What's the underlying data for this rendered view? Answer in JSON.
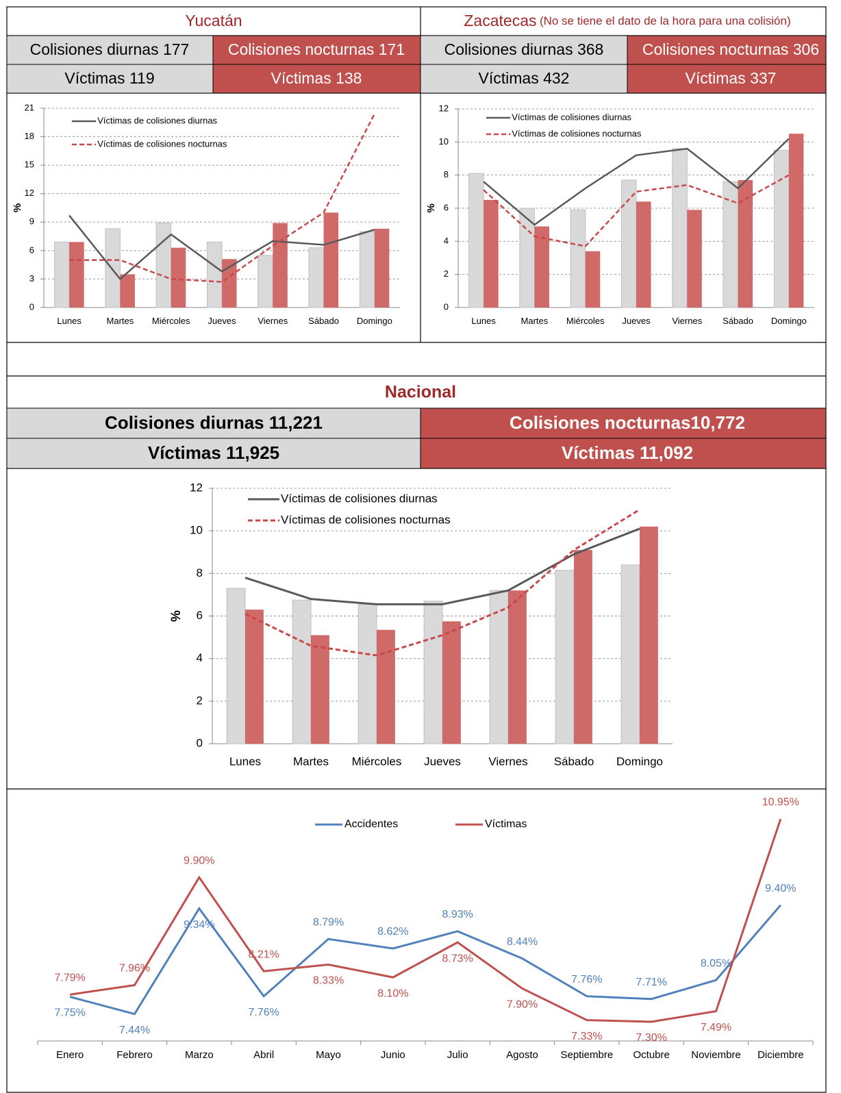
{
  "yucatan": {
    "title": "Yucatán",
    "rows": [
      [
        "Colisiones diurnas 177",
        "Colisiones nocturnas 171"
      ],
      [
        "Víctimas 119",
        "Víctimas 138"
      ]
    ]
  },
  "zacatecas": {
    "title": "Zacatecas",
    "note": "(No se tiene el dato de la hora para una colisión)",
    "rows": [
      [
        "Colisiones diurnas 368",
        "Colisiones nocturnas 306"
      ],
      [
        "Víctimas 432",
        "Víctimas 337"
      ]
    ]
  },
  "nacional": {
    "title": "Nacional",
    "rows": [
      [
        "Colisiones diurnas 11,221",
        "Colisiones nocturnas10,772"
      ],
      [
        "Víctimas 11,925",
        "Víctimas 11,092"
      ]
    ]
  },
  "chart_data": [
    {
      "type": "combo",
      "categories": [
        "Lunes",
        "Martes",
        "Miércoles",
        "Jueves",
        "Viernes",
        "Sábado",
        "Domingo"
      ],
      "ylabel": "%",
      "ylim": [
        0,
        21
      ],
      "yticks": [
        0,
        3,
        6,
        9,
        12,
        15,
        18,
        21
      ],
      "grid": true,
      "bars": [
        {
          "color": "#d9d9d9",
          "values": [
            6.9,
            8.3,
            8.9,
            6.9,
            5.5,
            6.3,
            8.0
          ]
        },
        {
          "color": "#d06a68",
          "values": [
            6.9,
            3.5,
            6.3,
            5.1,
            8.9,
            10.0,
            8.3
          ]
        }
      ],
      "series": [
        {
          "name": "Víctimas de colisiones diurnas",
          "color": "#595959",
          "dash": false,
          "values": [
            9.7,
            3.0,
            7.7,
            3.8,
            7.0,
            6.6,
            8.2
          ]
        },
        {
          "name": "Víctimas de colisiones nocturnas",
          "color": "#c9484a",
          "dash": true,
          "values": [
            5.0,
            5.0,
            3.0,
            2.7,
            6.5,
            10.0,
            20.4
          ]
        }
      ]
    },
    {
      "type": "combo",
      "categories": [
        "Lunes",
        "Martes",
        "Miércoles",
        "Jueves",
        "Viernes",
        "Sábado",
        "Domingo"
      ],
      "ylabel": "%",
      "ylim": [
        0,
        12
      ],
      "yticks": [
        0,
        2,
        4,
        6,
        8,
        10,
        12
      ],
      "grid": true,
      "bars": [
        {
          "color": "#d9d9d9",
          "values": [
            8.1,
            6.0,
            5.9,
            7.7,
            9.6,
            7.6,
            9.5
          ]
        },
        {
          "color": "#d06a68",
          "values": [
            6.5,
            4.9,
            3.4,
            6.4,
            5.9,
            7.7,
            10.5
          ]
        }
      ],
      "series": [
        {
          "name": "Víctimas de colisiones diurnas",
          "color": "#595959",
          "dash": false,
          "values": [
            7.6,
            5.0,
            7.2,
            9.2,
            9.6,
            7.2,
            10.2
          ]
        },
        {
          "name": "Víctimas de colisiones nocturnas",
          "color": "#c9484a",
          "dash": true,
          "values": [
            7.1,
            4.3,
            3.7,
            7.0,
            7.4,
            6.3,
            8.0
          ]
        }
      ]
    },
    {
      "type": "combo",
      "categories": [
        "Lunes",
        "Martes",
        "Miércoles",
        "Jueves",
        "Viernes",
        "Sábado",
        "Domingo"
      ],
      "ylabel": "%",
      "ylim": [
        0,
        12
      ],
      "yticks": [
        0,
        2,
        4,
        6,
        8,
        10,
        12
      ],
      "grid": true,
      "bars": [
        {
          "color": "#d9d9d9",
          "values": [
            7.3,
            6.75,
            6.55,
            6.7,
            7.2,
            8.15,
            8.4
          ]
        },
        {
          "color": "#d06a68",
          "values": [
            6.3,
            5.1,
            5.35,
            5.75,
            7.2,
            9.1,
            10.2
          ]
        }
      ],
      "series": [
        {
          "name": "Víctimas de colisiones diurnas",
          "color": "#595959",
          "dash": false,
          "values": [
            7.8,
            6.8,
            6.55,
            6.55,
            7.2,
            8.9,
            10.1
          ]
        },
        {
          "name": "Víctimas de colisiones nocturnas",
          "color": "#c9484a",
          "dash": true,
          "values": [
            6.1,
            4.6,
            4.15,
            5.1,
            6.4,
            9.1,
            11.0
          ]
        }
      ]
    },
    {
      "type": "line",
      "categories": [
        "Enero",
        "Febrero",
        "Marzo",
        "Abril",
        "Mayo",
        "Junio",
        "Julio",
        "Agosto",
        "Septiembre",
        "Octubre",
        "Noviembre",
        "Diciembre"
      ],
      "series": [
        {
          "name": "Accidentes",
          "color": "#4f81bd",
          "values": [
            7.75,
            7.44,
            9.34,
            7.76,
            8.79,
            8.62,
            8.93,
            8.44,
            7.76,
            7.71,
            8.05,
            9.4
          ],
          "value_labels": [
            "7.75%",
            "7.44%",
            "9.34%",
            "7.76%",
            "8.79%",
            "8.62%",
            "8.93%",
            "8.44%",
            "7.76%",
            "7.71%",
            "8.05%",
            "9.40%"
          ]
        },
        {
          "name": "Víctimas",
          "color": "#c0504d",
          "values": [
            7.79,
            7.96,
            9.9,
            8.21,
            8.33,
            8.1,
            8.73,
            7.9,
            7.33,
            7.3,
            7.49,
            10.95
          ],
          "value_labels": [
            "7.79%",
            "7.96%",
            "9.90%",
            "8.21%",
            "8.33%",
            "8.10%",
            "8.73%",
            "7.90%",
            "7.33%",
            "7.30%",
            "7.49%",
            "10.95%"
          ]
        }
      ]
    }
  ]
}
